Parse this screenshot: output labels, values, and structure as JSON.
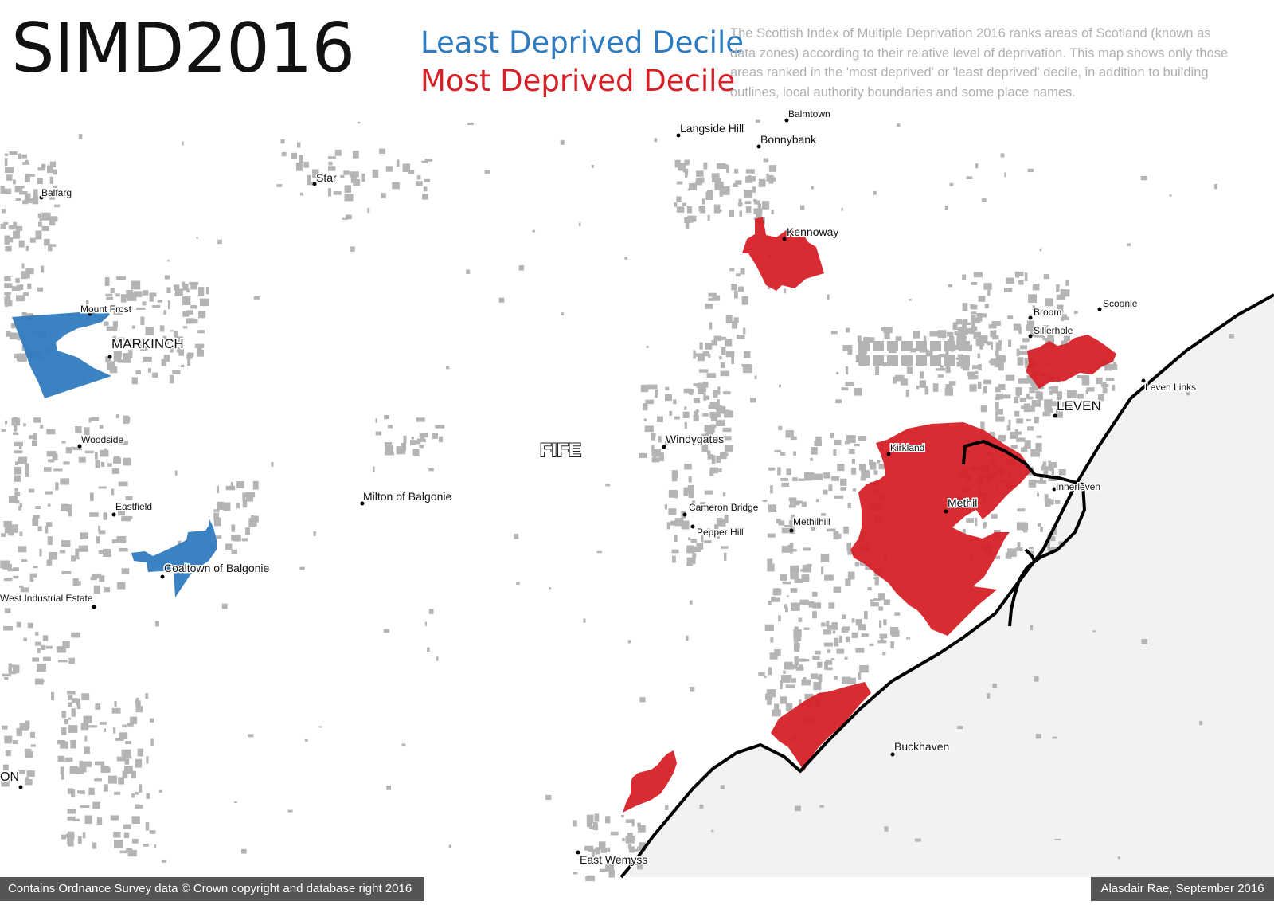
{
  "title": "SIMD2016",
  "legend": {
    "least": {
      "label": "Least Deprived Decile",
      "color": "#2f7bbf"
    },
    "most": {
      "label": "Most  Deprived Decile",
      "color": "#d62027"
    }
  },
  "description": "The Scottish Index of Multiple Deprivation 2016 ranks areas of Scotland (known as data zones) according to their relative level of deprivation. This map shows only those areas ranked in the 'most deprived' or 'least deprived' decile, in addition to building outlines, local authority boundaries and some place names.",
  "region_label": "FIFE",
  "places": {
    "balgonie_top": "Balmtown",
    "langside_hill": "Langside Hill",
    "bonnybank": "Bonnybank",
    "star": "Star",
    "balfarg": "Balfarg",
    "kennoway": "Kennoway",
    "mount_frost": "Mount Frost",
    "markinch": "MARKINCH",
    "broom": "Broom",
    "scoonie": "Scoonie",
    "sillerhole": "Sillerhole",
    "leven_links": "Leven Links",
    "leven": "LEVEN",
    "woodside": "Woodside",
    "kirkland": "Kirkland",
    "windygates": "Windygates",
    "milton": "Milton of Balgonie",
    "innerleven": "Innerleven",
    "eastfield": "Eastfield",
    "cameron_bridge": "Cameron Bridge",
    "methil": "Methil",
    "methilhill": "Methilhill",
    "pepper_hill": "Pepper Hill",
    "coaltown": "Coaltown of Balgonie",
    "west_industrial": "West Industrial Estate",
    "buckhaven": "Buckhaven",
    "on": "ON",
    "east_wemyss": "East Wemyss"
  },
  "colors": {
    "building": "#b4b4b4",
    "sea": "#f2f2f1",
    "coast": "#000000"
  },
  "footer": {
    "left": "Contains Ordnance Survey data © Crown copyright and database right 2016",
    "right": "Alasdair Rae, September 2016"
  }
}
